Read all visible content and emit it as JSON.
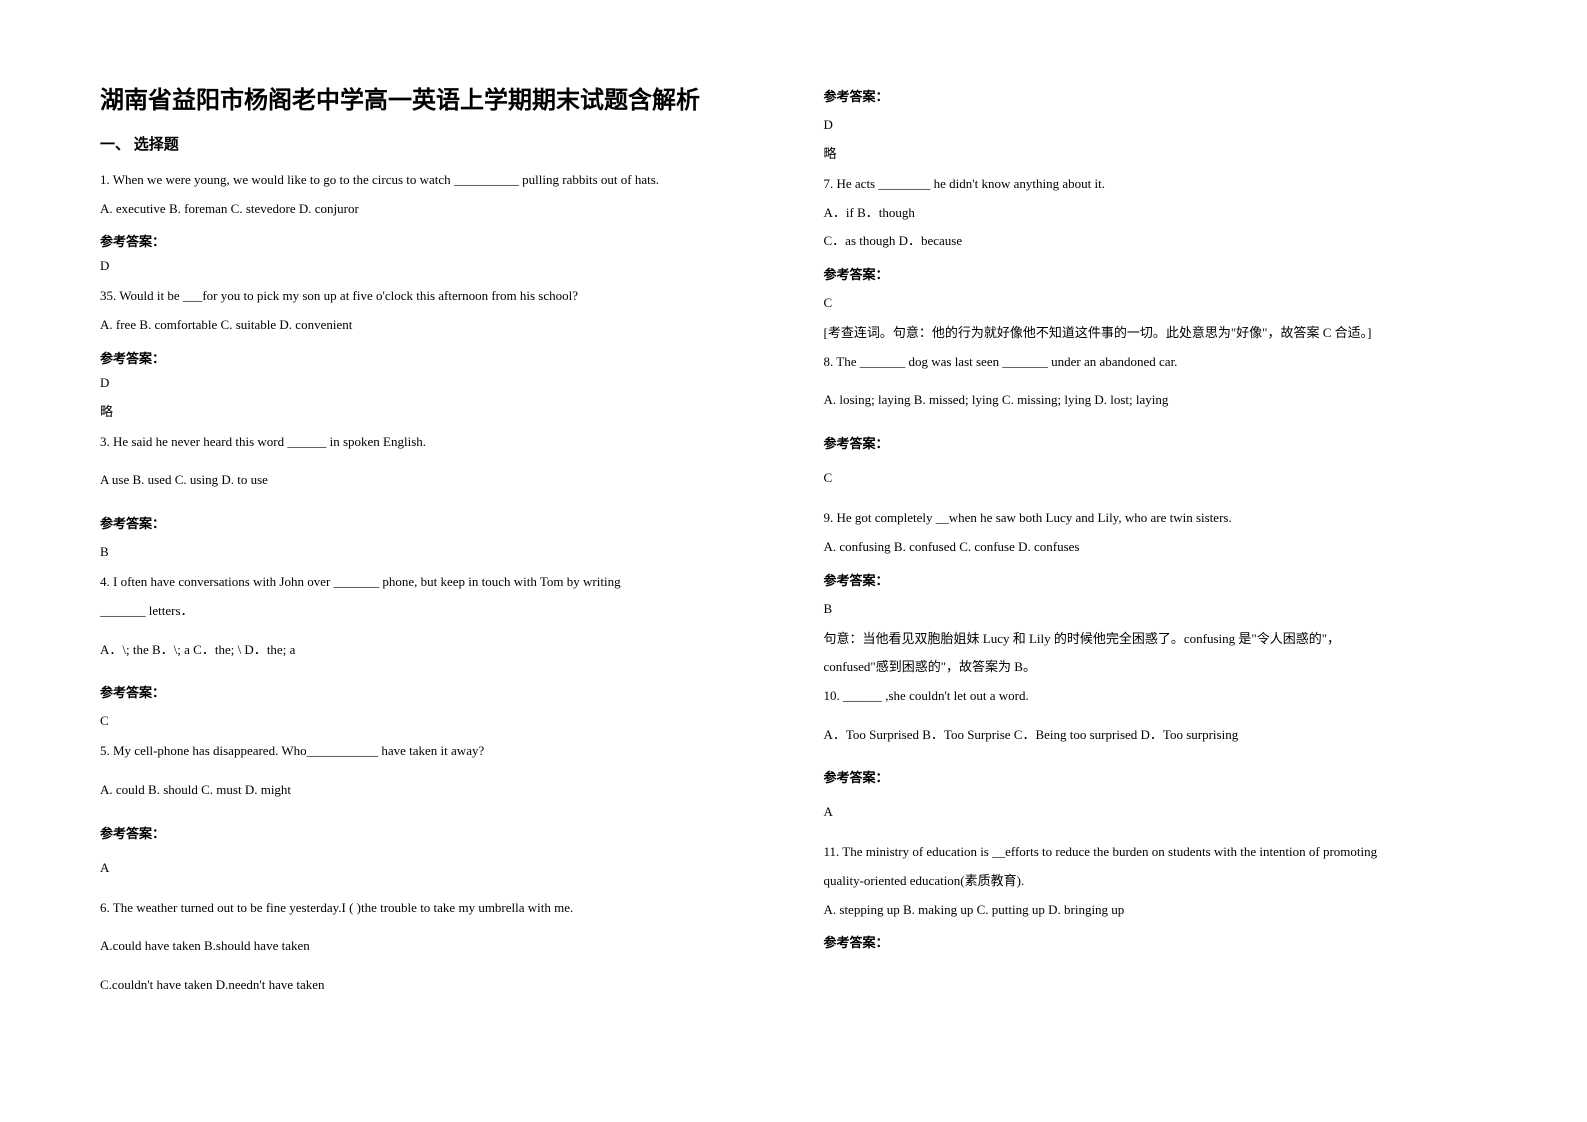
{
  "colors": {
    "text": "#000000",
    "bg": "#ffffff"
  },
  "typography": {
    "body_fontsize": 13,
    "title_fontsize": 24,
    "line_height": 1.9
  },
  "title": "湖南省益阳市杨阁老中学高一英语上学期期末试题含解析",
  "section1_head": "一、 选择题",
  "ans_label": "参考答案：",
  "lue": "略",
  "q1": {
    "stem": "1. When we were young, we would like to go to the circus to watch __________ pulling rabbits out of hats.",
    "opts": "A. executive     B. foreman     C. stevedore    D. conjuror",
    "ans": "D"
  },
  "q2": {
    "stem": "35. Would it be ___for you to pick my son up at five o'clock this afternoon from his school?",
    "opts": "   A. free        B. comfortable          C. suitable      D. convenient",
    "ans": "D"
  },
  "q3": {
    "stem": "3.  He said he never heard this word ______ in spoken English.",
    "opts": "     A use            B. used            C. using          D. to use",
    "ans": "B"
  },
  "q4": {
    "stem1": "4. I often have conversations with John over _______ phone, but keep in touch with Tom by writing",
    "stem2": " _______ letters．",
    "opts": "A．\\; the                B．\\; a                   C．the; \\                 D．the; a",
    "ans": "C"
  },
  "q5": {
    "stem": "5. My cell-phone has disappeared. Who___________ have taken it away?",
    "opts": "A. could    B. should   C. must   D. might",
    "ans": "A"
  },
  "q6": {
    "stem": "6. The weather turned out to be fine yesterday.I (  )the trouble to take my umbrella with me.",
    "opts1": "A.could have taken   B.should have taken",
    "opts2": "C.couldn't have taken  D.needn't have taken",
    "ans": "D"
  },
  "q7": {
    "stem": "7. He acts ________ he didn't know anything about it.",
    "opts1": "A．if                                          B．though",
    "opts2": "C．as though              D．because",
    "ans": "C",
    "exp": "[考查连词。句意：他的行为就好像他不知道这件事的一切。此处意思为\"好像\"，故答案 C 合适。]"
  },
  "q8": {
    "stem": "8. The _______ dog was last seen _______ under an abandoned car.",
    "opts": "A. losing; laying              B. missed; lying         C. missing; lying         D. lost; laying",
    "ans": "C"
  },
  "q9": {
    "stem": "9. He got completely __when he saw both Lucy and Lily, who are twin sisters.",
    "opts": "A. confusing      B. confused     C. confuse       D. confuses",
    "ans": "B",
    "exp1": "句意：当他看见双胞胎姐妹 Lucy 和 Lily 的时候他完全困惑了。confusing 是\"令人困惑的\"，",
    "exp2": "confused\"感到困惑的\"，故答案为 B。"
  },
  "q10": {
    "stem": "10. ______ ,she couldn't let out a word.",
    "opts": "A．Too Surprised  B．Too Surprise  C．Being too surprised  D．Too surprising",
    "ans": "A"
  },
  "q11": {
    "stem1": "11. The ministry of education is __efforts to reduce the burden on students with the intention of promoting",
    "stem2": "quality-oriented education(素质教育).",
    "opts": "A. stepping up     B.  making up   C.  putting up    D.  bringing up"
  }
}
